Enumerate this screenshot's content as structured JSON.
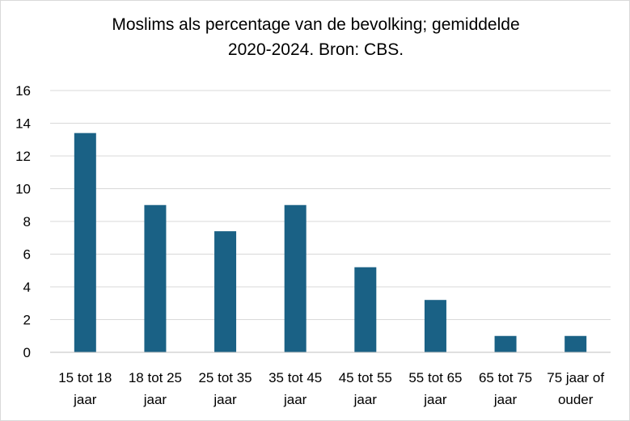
{
  "chart_data": {
    "type": "bar",
    "title_lines": [
      "Moslims als percentage van de bevolking; gemiddelde",
      "2020-2024. Bron: CBS."
    ],
    "categories": [
      [
        "15 tot 18",
        "jaar"
      ],
      [
        "18 tot 25",
        "jaar"
      ],
      [
        "25 tot 35",
        "jaar"
      ],
      [
        "35 tot 45",
        "jaar"
      ],
      [
        "45 tot 55",
        "jaar"
      ],
      [
        "55 tot 65",
        "jaar"
      ],
      [
        "65 tot 75",
        "jaar"
      ],
      [
        "75 jaar of",
        "ouder"
      ]
    ],
    "values": [
      13.4,
      9.0,
      7.4,
      9.0,
      5.2,
      3.2,
      1.0,
      1.0
    ],
    "ylim": [
      0,
      16
    ],
    "yticks": [
      0,
      2,
      4,
      6,
      8,
      10,
      12,
      14,
      16
    ],
    "grid": true,
    "legend": "none",
    "colors": {
      "bar": "#1a6185",
      "grid": "#d9d9d9",
      "axis": "#bfbfbf"
    }
  }
}
